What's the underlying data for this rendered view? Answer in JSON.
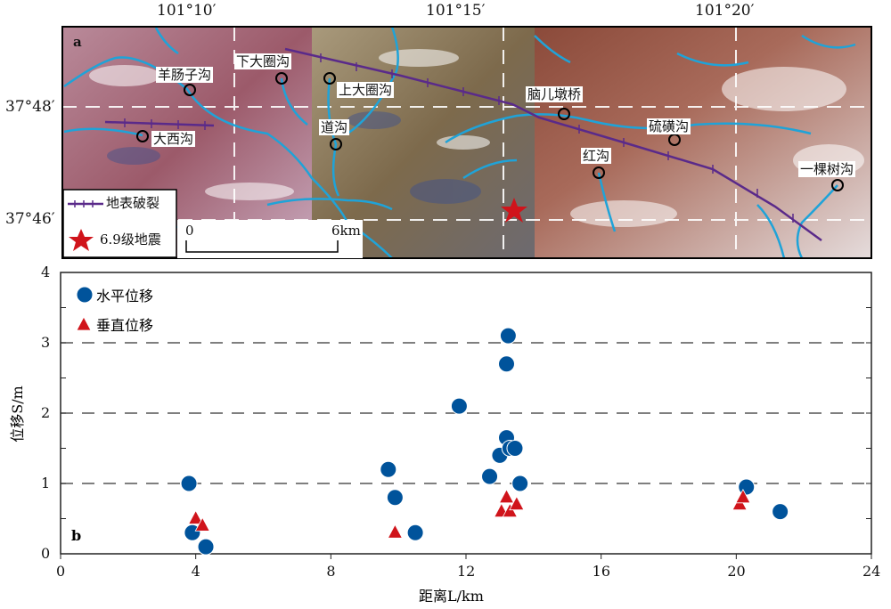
{
  "map": {
    "panel_label": "a",
    "lon_labels": [
      "101°10′",
      "101°15′",
      "101°20′"
    ],
    "lat_labels": [
      "37°48′",
      "37°46′"
    ],
    "places": [
      "羊肠子沟",
      "下大圈沟",
      "上大圈沟",
      "大西沟",
      "道沟",
      "脑儿墩桥",
      "硫磺沟",
      "红沟",
      "一棵树沟"
    ],
    "legend": {
      "rupture": "地表破裂",
      "quake": "6.9级地震"
    },
    "scale": {
      "start": "0",
      "end": "6km"
    },
    "colors": {
      "river": "#1fa3d8",
      "rupture": "#5a2a8a",
      "star": "#d0141b"
    }
  },
  "chart_data": {
    "type": "scatter",
    "panel_label": "b",
    "xlabel": "距离L/km",
    "ylabel": "位移S/m",
    "xlim": [
      0,
      24
    ],
    "ylim": [
      0,
      4
    ],
    "xticks": [
      "0",
      "4",
      "8",
      "12",
      "16",
      "20",
      "24"
    ],
    "yticks": [
      "0",
      "1",
      "2",
      "3",
      "4"
    ],
    "grid": "dashed horizontal at 1,2,3",
    "legend_position": "top-left",
    "series": [
      {
        "name": "水平位移",
        "marker": "circle",
        "color": "#00539b",
        "points": [
          [
            3.8,
            1.0
          ],
          [
            3.9,
            0.3
          ],
          [
            4.3,
            0.1
          ],
          [
            9.7,
            1.2
          ],
          [
            9.9,
            0.8
          ],
          [
            10.5,
            0.3
          ],
          [
            11.8,
            2.1
          ],
          [
            12.7,
            1.1
          ],
          [
            13.0,
            1.4
          ],
          [
            13.2,
            1.65
          ],
          [
            13.3,
            1.5
          ],
          [
            13.45,
            1.5
          ],
          [
            13.6,
            1.0
          ],
          [
            13.2,
            2.7
          ],
          [
            13.25,
            3.1
          ],
          [
            20.3,
            0.95
          ],
          [
            21.3,
            0.6
          ]
        ]
      },
      {
        "name": "垂直位移",
        "marker": "triangle",
        "color": "#d0141b",
        "points": [
          [
            4.0,
            0.5
          ],
          [
            4.2,
            0.4
          ],
          [
            9.9,
            0.3
          ],
          [
            13.05,
            0.6
          ],
          [
            13.3,
            0.6
          ],
          [
            13.2,
            0.8
          ],
          [
            13.5,
            0.7
          ],
          [
            20.1,
            0.7
          ],
          [
            20.2,
            0.8
          ]
        ]
      }
    ]
  }
}
